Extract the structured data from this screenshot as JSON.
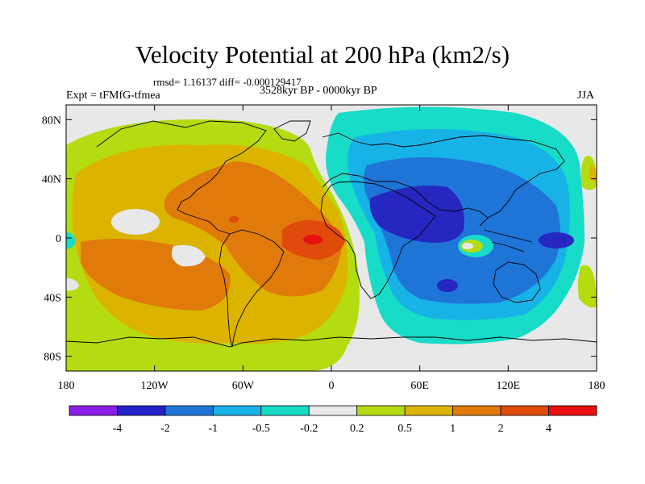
{
  "header": {
    "title": "Velocity Potential at 200 hPa (km2/s)",
    "stats": "rmsd= 1.16137 diff= -0.000129417",
    "experiment": "Expt = tFMfG-tfmea",
    "period": "3528kyr BP - 0000kyr BP",
    "season": "JJA"
  },
  "map": {
    "lat_ticks": [
      "80N",
      "40N",
      "0",
      "40S",
      "80S"
    ],
    "lon_ticks": [
      "180",
      "120W",
      "60W",
      "0",
      "60E",
      "120E",
      "180"
    ],
    "lat_values": [
      80,
      40,
      0,
      -40,
      -80
    ],
    "lon_values": [
      -180,
      -120,
      -60,
      0,
      60,
      120,
      180
    ],
    "lat_range": [
      -90,
      90
    ],
    "lon_range": [
      -180,
      180
    ]
  },
  "colorbar": {
    "labels": [
      "-4",
      "-2",
      "-1",
      "-0.5",
      "-0.2",
      "0.2",
      "0.5",
      "1",
      "2",
      "4"
    ],
    "colors": [
      "#8a1ee6",
      "#2222c8",
      "#1f74d8",
      "#17b2e6",
      "#17dcc8",
      "#e8e8e8",
      "#b4dc10",
      "#dcb400",
      "#e07a0a",
      "#e04a0a",
      "#e81010"
    ]
  },
  "palette": {
    "deep_blue": "#2626c0",
    "blue": "#1f74d8",
    "light_blue": "#17b2e6",
    "cyan": "#17dcc8",
    "gray": "#e8e8e8",
    "lime": "#b4dc10",
    "gold": "#dcb400",
    "orange": "#e07a0a",
    "red_orange": "#e04a0a",
    "red": "#e81010"
  }
}
